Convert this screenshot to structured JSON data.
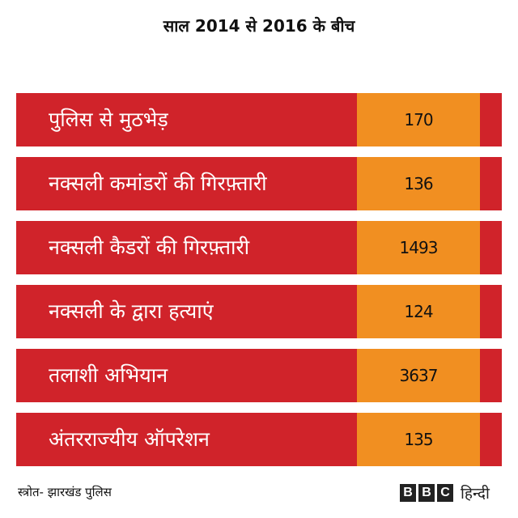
{
  "title": "साल 2014 से 2016 के बीच",
  "colors": {
    "row_background": "#d0232a",
    "value_background": "#f18f21",
    "label_text": "#ffffff",
    "value_text": "#111111"
  },
  "rows": [
    {
      "label": "पुलिस से मुठभेड़",
      "value": "170"
    },
    {
      "label": "नक्सली कमांडरों की गिरफ़्तारी",
      "value": "136"
    },
    {
      "label": "नक्सली कैडरों की गिरफ़्तारी",
      "value": "1493"
    },
    {
      "label": "नक्सली के द्वारा हत्याएं",
      "value": "124"
    },
    {
      "label": "तलाशी अभियान",
      "value": "3637"
    },
    {
      "label": "अंतरराज्यीय ऑपरेशन",
      "value": "135"
    }
  ],
  "source": "स्त्रोत- झारखंड पुलिस",
  "logo": {
    "letters": [
      "B",
      "B",
      "C"
    ],
    "hindi": "हिन्दी"
  }
}
